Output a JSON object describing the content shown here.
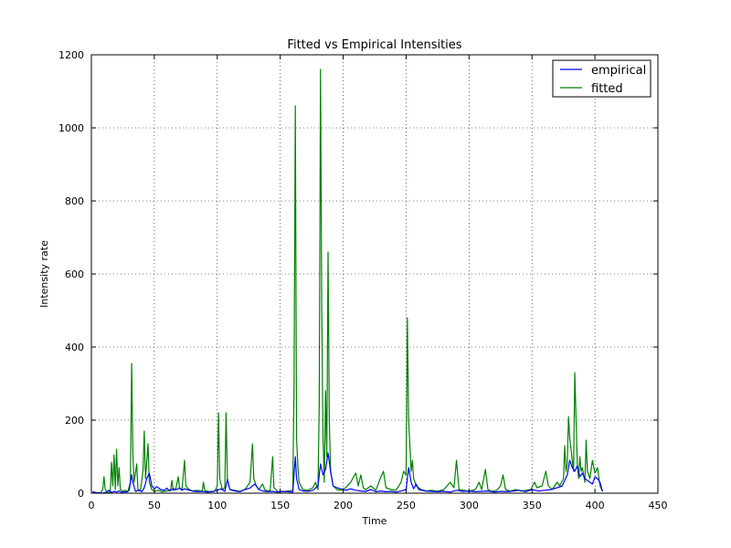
{
  "chart_data": {
    "type": "line",
    "title": "Fitted vs Empirical Intensities",
    "xlabel": "Time",
    "ylabel": "Intensity rate",
    "xlim": [
      0,
      450
    ],
    "ylim": [
      0,
      1200
    ],
    "xticks": [
      0,
      50,
      100,
      150,
      200,
      250,
      300,
      350,
      400,
      450
    ],
    "yticks": [
      0,
      200,
      400,
      600,
      800,
      1000,
      1200
    ],
    "grid": true,
    "legend": "top-right",
    "series": [
      {
        "name": "empirical",
        "color": "#0000ff",
        "points": [
          [
            1,
            5
          ],
          [
            3,
            2
          ],
          [
            6,
            1
          ],
          [
            9,
            0
          ],
          [
            12,
            3
          ],
          [
            14,
            8
          ],
          [
            16,
            2
          ],
          [
            18,
            5
          ],
          [
            20,
            3
          ],
          [
            22,
            6
          ],
          [
            24,
            2
          ],
          [
            26,
            4
          ],
          [
            28,
            3
          ],
          [
            30,
            8
          ],
          [
            32,
            50
          ],
          [
            33,
            30
          ],
          [
            35,
            5
          ],
          [
            38,
            8
          ],
          [
            40,
            4
          ],
          [
            42,
            15
          ],
          [
            44,
            40
          ],
          [
            46,
            55
          ],
          [
            48,
            20
          ],
          [
            50,
            12
          ],
          [
            52,
            18
          ],
          [
            55,
            10
          ],
          [
            58,
            8
          ],
          [
            60,
            14
          ],
          [
            62,
            6
          ],
          [
            65,
            12
          ],
          [
            68,
            10
          ],
          [
            70,
            14
          ],
          [
            72,
            8
          ],
          [
            74,
            12
          ],
          [
            76,
            10
          ],
          [
            80,
            6
          ],
          [
            84,
            4
          ],
          [
            88,
            5
          ],
          [
            92,
            3
          ],
          [
            96,
            4
          ],
          [
            100,
            8
          ],
          [
            103,
            12
          ],
          [
            106,
            5
          ],
          [
            108,
            38
          ],
          [
            110,
            10
          ],
          [
            114,
            6
          ],
          [
            118,
            4
          ],
          [
            122,
            10
          ],
          [
            126,
            14
          ],
          [
            128,
            20
          ],
          [
            130,
            25
          ],
          [
            133,
            10
          ],
          [
            136,
            6
          ],
          [
            140,
            4
          ],
          [
            144,
            5
          ],
          [
            148,
            3
          ],
          [
            152,
            5
          ],
          [
            156,
            4
          ],
          [
            160,
            3
          ],
          [
            162,
            100
          ],
          [
            163,
            40
          ],
          [
            165,
            10
          ],
          [
            168,
            6
          ],
          [
            172,
            5
          ],
          [
            176,
            8
          ],
          [
            180,
            20
          ],
          [
            182,
            80
          ],
          [
            184,
            50
          ],
          [
            186,
            65
          ],
          [
            188,
            110
          ],
          [
            190,
            60
          ],
          [
            192,
            20
          ],
          [
            195,
            15
          ],
          [
            198,
            12
          ],
          [
            202,
            8
          ],
          [
            206,
            12
          ],
          [
            210,
            8
          ],
          [
            214,
            6
          ],
          [
            218,
            5
          ],
          [
            222,
            10
          ],
          [
            226,
            4
          ],
          [
            230,
            6
          ],
          [
            234,
            4
          ],
          [
            238,
            5
          ],
          [
            242,
            3
          ],
          [
            246,
            6
          ],
          [
            250,
            10
          ],
          [
            252,
            70
          ],
          [
            254,
            30
          ],
          [
            256,
            12
          ],
          [
            258,
            25
          ],
          [
            260,
            10
          ],
          [
            265,
            6
          ],
          [
            270,
            5
          ],
          [
            275,
            4
          ],
          [
            280,
            5
          ],
          [
            285,
            3
          ],
          [
            290,
            8
          ],
          [
            295,
            5
          ],
          [
            300,
            6
          ],
          [
            305,
            4
          ],
          [
            310,
            5
          ],
          [
            315,
            6
          ],
          [
            320,
            3
          ],
          [
            325,
            5
          ],
          [
            330,
            4
          ],
          [
            335,
            6
          ],
          [
            340,
            8
          ],
          [
            345,
            4
          ],
          [
            350,
            10
          ],
          [
            355,
            6
          ],
          [
            360,
            8
          ],
          [
            365,
            10
          ],
          [
            370,
            15
          ],
          [
            374,
            20
          ],
          [
            378,
            50
          ],
          [
            380,
            90
          ],
          [
            382,
            70
          ],
          [
            384,
            60
          ],
          [
            386,
            75
          ],
          [
            388,
            45
          ],
          [
            390,
            55
          ],
          [
            392,
            40
          ],
          [
            394,
            35
          ],
          [
            396,
            30
          ],
          [
            398,
            25
          ],
          [
            400,
            45
          ],
          [
            402,
            40
          ],
          [
            404,
            30
          ],
          [
            406,
            5
          ]
        ]
      },
      {
        "name": "fitted",
        "color": "#008000",
        "points": [
          [
            1,
            2
          ],
          [
            4,
            1
          ],
          [
            7,
            0
          ],
          [
            9,
            10
          ],
          [
            10,
            45
          ],
          [
            11,
            10
          ],
          [
            13,
            3
          ],
          [
            15,
            2
          ],
          [
            16,
            85
          ],
          [
            17,
            20
          ],
          [
            18,
            105
          ],
          [
            19,
            10
          ],
          [
            20,
            120
          ],
          [
            21,
            20
          ],
          [
            22,
            70
          ],
          [
            23,
            10
          ],
          [
            25,
            5
          ],
          [
            27,
            8
          ],
          [
            29,
            4
          ],
          [
            31,
            30
          ],
          [
            32,
            355
          ],
          [
            33,
            100
          ],
          [
            34,
            30
          ],
          [
            36,
            80
          ],
          [
            37,
            10
          ],
          [
            39,
            8
          ],
          [
            41,
            60
          ],
          [
            42,
            170
          ],
          [
            43,
            40
          ],
          [
            45,
            135
          ],
          [
            46,
            30
          ],
          [
            48,
            10
          ],
          [
            50,
            5
          ],
          [
            53,
            8
          ],
          [
            56,
            4
          ],
          [
            60,
            6
          ],
          [
            63,
            10
          ],
          [
            64,
            35
          ],
          [
            65,
            8
          ],
          [
            67,
            10
          ],
          [
            69,
            45
          ],
          [
            70,
            15
          ],
          [
            72,
            10
          ],
          [
            74,
            90
          ],
          [
            75,
            20
          ],
          [
            77,
            12
          ],
          [
            80,
            6
          ],
          [
            84,
            8
          ],
          [
            88,
            5
          ],
          [
            89,
            30
          ],
          [
            90,
            8
          ],
          [
            94,
            4
          ],
          [
            98,
            6
          ],
          [
            100,
            20
          ],
          [
            101,
            220
          ],
          [
            102,
            40
          ],
          [
            104,
            10
          ],
          [
            106,
            15
          ],
          [
            107,
            220
          ],
          [
            108,
            40
          ],
          [
            110,
            10
          ],
          [
            114,
            8
          ],
          [
            118,
            5
          ],
          [
            122,
            10
          ],
          [
            126,
            30
          ],
          [
            128,
            135
          ],
          [
            129,
            40
          ],
          [
            131,
            20
          ],
          [
            133,
            10
          ],
          [
            136,
            25
          ],
          [
            138,
            8
          ],
          [
            142,
            6
          ],
          [
            144,
            100
          ],
          [
            145,
            15
          ],
          [
            148,
            5
          ],
          [
            152,
            4
          ],
          [
            156,
            6
          ],
          [
            160,
            8
          ],
          [
            161,
            300
          ],
          [
            162,
            1060
          ],
          [
            163,
            150
          ],
          [
            164,
            75
          ],
          [
            165,
            30
          ],
          [
            168,
            10
          ],
          [
            172,
            8
          ],
          [
            176,
            15
          ],
          [
            178,
            30
          ],
          [
            180,
            10
          ],
          [
            181,
            250
          ],
          [
            182,
            1160
          ],
          [
            183,
            500
          ],
          [
            184,
            150
          ],
          [
            185,
            30
          ],
          [
            186,
            280
          ],
          [
            187,
            100
          ],
          [
            188,
            660
          ],
          [
            189,
            200
          ],
          [
            190,
            60
          ],
          [
            192,
            20
          ],
          [
            195,
            10
          ],
          [
            198,
            8
          ],
          [
            202,
            15
          ],
          [
            206,
            30
          ],
          [
            210,
            55
          ],
          [
            212,
            20
          ],
          [
            214,
            50
          ],
          [
            216,
            15
          ],
          [
            218,
            10
          ],
          [
            222,
            20
          ],
          [
            226,
            8
          ],
          [
            230,
            45
          ],
          [
            232,
            60
          ],
          [
            234,
            15
          ],
          [
            238,
            10
          ],
          [
            242,
            8
          ],
          [
            246,
            30
          ],
          [
            248,
            60
          ],
          [
            250,
            50
          ],
          [
            251,
            480
          ],
          [
            252,
            200
          ],
          [
            254,
            60
          ],
          [
            255,
            90
          ],
          [
            256,
            40
          ],
          [
            258,
            20
          ],
          [
            262,
            10
          ],
          [
            266,
            6
          ],
          [
            270,
            8
          ],
          [
            275,
            5
          ],
          [
            280,
            10
          ],
          [
            285,
            30
          ],
          [
            288,
            15
          ],
          [
            290,
            90
          ],
          [
            292,
            10
          ],
          [
            296,
            8
          ],
          [
            300,
            5
          ],
          [
            305,
            10
          ],
          [
            308,
            30
          ],
          [
            310,
            10
          ],
          [
            313,
            65
          ],
          [
            315,
            10
          ],
          [
            318,
            5
          ],
          [
            322,
            8
          ],
          [
            325,
            20
          ],
          [
            327,
            50
          ],
          [
            329,
            10
          ],
          [
            333,
            5
          ],
          [
            337,
            10
          ],
          [
            341,
            6
          ],
          [
            345,
            8
          ],
          [
            349,
            10
          ],
          [
            352,
            30
          ],
          [
            354,
            15
          ],
          [
            358,
            20
          ],
          [
            361,
            60
          ],
          [
            363,
            20
          ],
          [
            366,
            10
          ],
          [
            370,
            30
          ],
          [
            372,
            20
          ],
          [
            375,
            40
          ],
          [
            376,
            130
          ],
          [
            377,
            60
          ],
          [
            378,
            80
          ],
          [
            379,
            210
          ],
          [
            380,
            150
          ],
          [
            381,
            120
          ],
          [
            383,
            60
          ],
          [
            384,
            330
          ],
          [
            385,
            200
          ],
          [
            386,
            80
          ],
          [
            387,
            40
          ],
          [
            388,
            100
          ],
          [
            389,
            60
          ],
          [
            390,
            70
          ],
          [
            392,
            30
          ],
          [
            393,
            145
          ],
          [
            394,
            60
          ],
          [
            396,
            40
          ],
          [
            398,
            90
          ],
          [
            400,
            55
          ],
          [
            402,
            70
          ],
          [
            404,
            20
          ],
          [
            406,
            5
          ]
        ]
      }
    ]
  }
}
